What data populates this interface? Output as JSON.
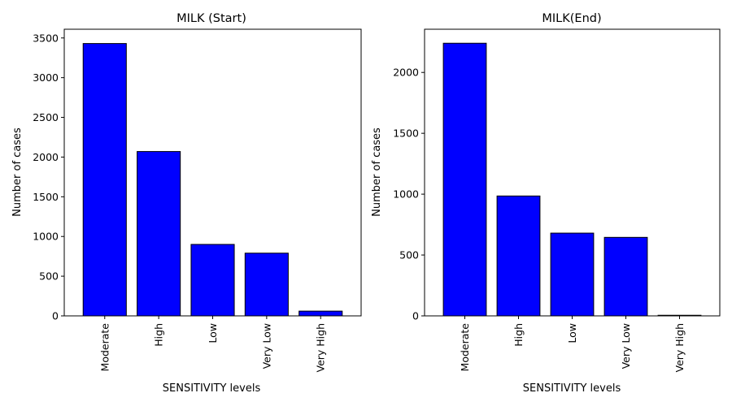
{
  "chart_data": [
    {
      "type": "bar",
      "title": "MILK (Start)",
      "xlabel": "SENSITIVITY levels",
      "ylabel": "Number of cases",
      "categories": [
        "Moderate",
        "High",
        "Low",
        "Very Low",
        "Very High"
      ],
      "values": [
        3430,
        2070,
        900,
        790,
        60
      ],
      "ylim": [
        0,
        3610
      ],
      "yticks": [
        0,
        500,
        1000,
        1500,
        2000,
        2500,
        3000,
        3500
      ],
      "bar_color": "#0000ff",
      "grid": false
    },
    {
      "type": "bar",
      "title": "MILK(End)",
      "xlabel": "SENSITIVITY levels",
      "ylabel": "Number of cases",
      "categories": [
        "Moderate",
        "High",
        "Low",
        "Very Low",
        "Very High"
      ],
      "values": [
        2240,
        985,
        680,
        645,
        5
      ],
      "ylim": [
        0,
        2355
      ],
      "yticks": [
        0,
        500,
        1000,
        1500,
        2000
      ],
      "bar_color": "#0000ff",
      "grid": false
    }
  ]
}
